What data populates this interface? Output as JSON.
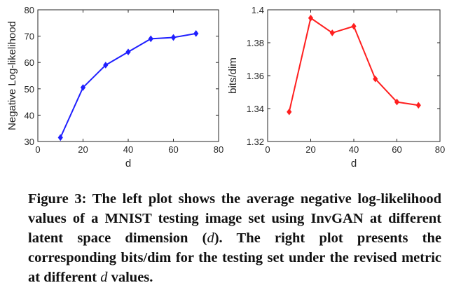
{
  "chart_data": [
    {
      "type": "line",
      "xlabel": "d",
      "ylabel": "Negative Log-likelihood",
      "xlim": [
        0,
        80
      ],
      "ylim": [
        30,
        80
      ],
      "xticks": [
        0,
        20,
        40,
        60,
        80
      ],
      "yticks": [
        30,
        40,
        50,
        60,
        70,
        80
      ],
      "grid": false,
      "color": "#1f1fff",
      "marker": "diamond",
      "series": [
        {
          "x": [
            10,
            20,
            30,
            40,
            50,
            60,
            70
          ],
          "y": [
            31.5,
            50.5,
            59,
            64,
            69,
            69.5,
            71
          ]
        }
      ]
    },
    {
      "type": "line",
      "xlabel": "d",
      "ylabel": "bits/dim",
      "xlim": [
        0,
        80
      ],
      "ylim": [
        1.32,
        1.4
      ],
      "xticks": [
        0,
        20,
        40,
        60,
        80
      ],
      "yticks": [
        1.32,
        1.34,
        1.36,
        1.38,
        1.4
      ],
      "ytick_labels": [
        "1.32",
        "1.34",
        "1.36",
        "1.38",
        "1.4"
      ],
      "grid": false,
      "color": "#ff1f1f",
      "marker": "diamond",
      "series": [
        {
          "x": [
            10,
            20,
            30,
            40,
            50,
            60,
            70
          ],
          "y": [
            1.338,
            1.395,
            1.386,
            1.39,
            1.358,
            1.344,
            1.342
          ]
        }
      ]
    }
  ],
  "caption": {
    "lead": "Figure 3: The left plot shows the average negative log-likelihood values of a MNIST testing image set using InvGAN at different latent space dimension (",
    "var1": "d",
    "mid": "). The right plot presents the corresponding bits/dim for the testing set under the revised metric at different ",
    "var2": "d",
    "tail": " values."
  }
}
